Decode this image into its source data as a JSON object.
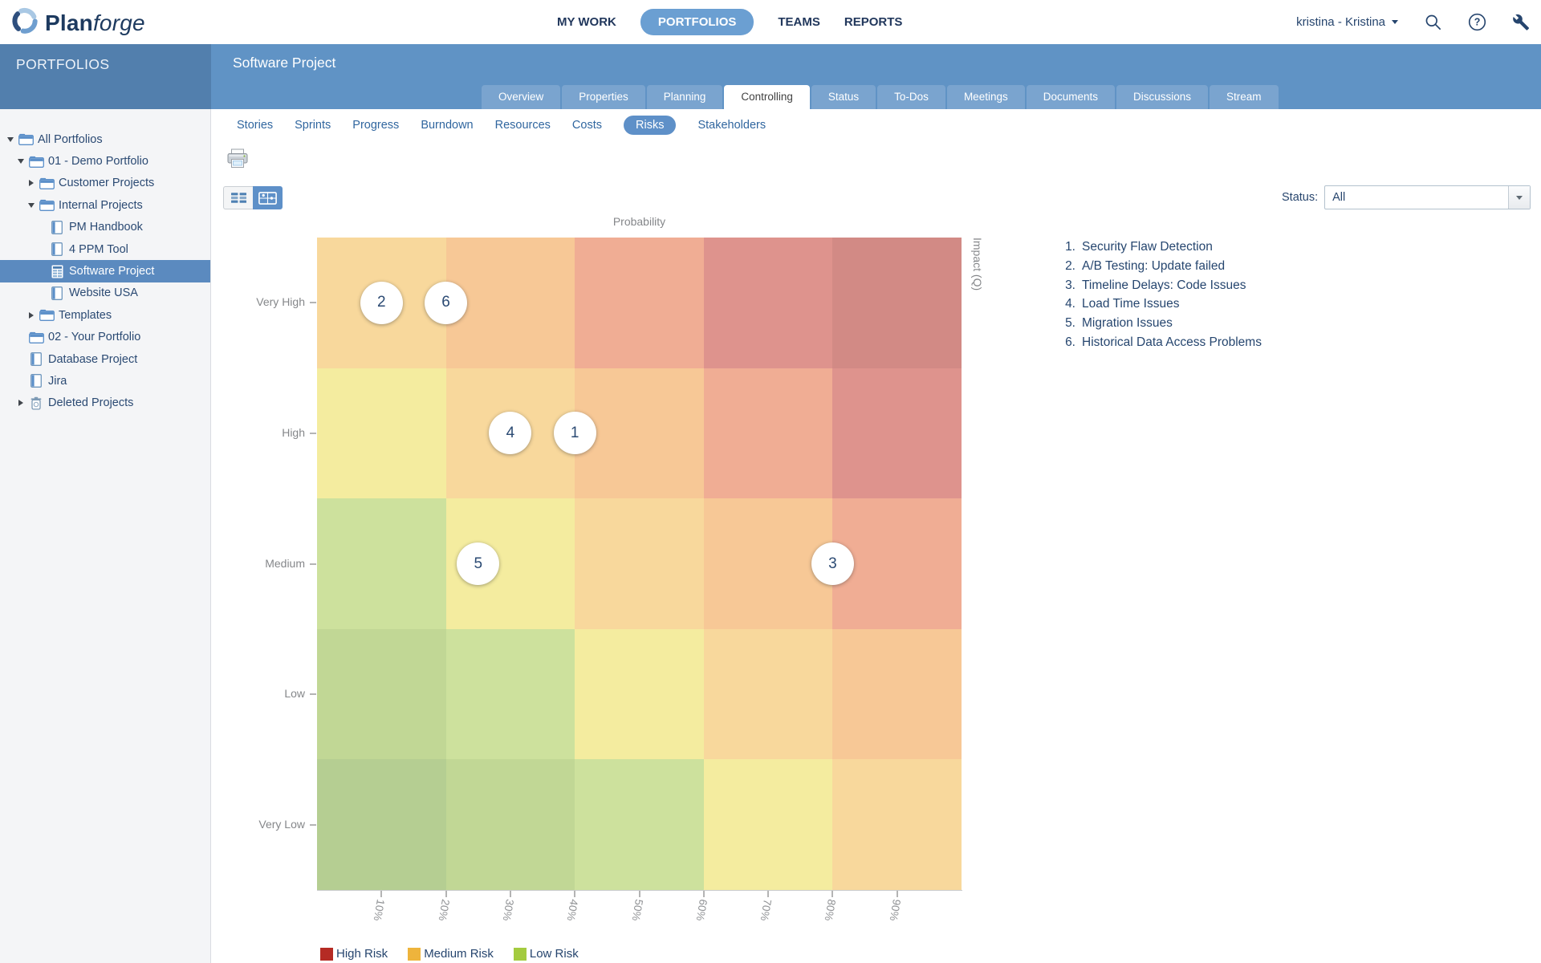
{
  "topbar": {
    "logo": {
      "brand_bold": "Plan",
      "brand_light": "forge"
    },
    "nav_items": [
      {
        "label": "MY WORK",
        "active": false
      },
      {
        "label": "PORTFOLIOS",
        "active": true
      },
      {
        "label": "TEAMS",
        "active": false
      },
      {
        "label": "REPORTS",
        "active": false
      }
    ],
    "user_label": "kristina - Kristina",
    "icon_names": [
      "search-icon",
      "help-icon",
      "admin-wrench-icon"
    ]
  },
  "header": {
    "sidebar_title": "PORTFOLIOS",
    "page_title": "Software Project",
    "tabs": [
      {
        "label": "Overview",
        "active": false
      },
      {
        "label": "Properties",
        "active": false
      },
      {
        "label": "Planning",
        "active": false
      },
      {
        "label": "Controlling",
        "active": true
      },
      {
        "label": "Status",
        "active": false
      },
      {
        "label": "To-Dos",
        "active": false
      },
      {
        "label": "Meetings",
        "active": false
      },
      {
        "label": "Documents",
        "active": false
      },
      {
        "label": "Discussions",
        "active": false
      },
      {
        "label": "Stream",
        "active": false
      }
    ]
  },
  "sidebar": {
    "tree": [
      {
        "label": "All Portfolios",
        "level": 0,
        "icon": "folder",
        "expander": "expanded",
        "selected": false
      },
      {
        "label": "01 - Demo Portfolio",
        "level": 1,
        "icon": "folder",
        "expander": "expanded",
        "selected": false
      },
      {
        "label": "Customer Projects",
        "level": 2,
        "icon": "folder",
        "expander": "collapsed",
        "selected": false
      },
      {
        "label": "Internal Projects",
        "level": 2,
        "icon": "folder",
        "expander": "expanded",
        "selected": false
      },
      {
        "label": "PM Handbook",
        "level": 3,
        "icon": "project",
        "expander": "none",
        "selected": false
      },
      {
        "label": "4 PPM Tool",
        "level": 3,
        "icon": "project",
        "expander": "none",
        "selected": false
      },
      {
        "label": "Software Project",
        "level": 3,
        "icon": "project-grid",
        "expander": "none",
        "selected": true
      },
      {
        "label": "Website USA",
        "level": 3,
        "icon": "project",
        "expander": "none",
        "selected": false
      },
      {
        "label": "Templates",
        "level": 2,
        "icon": "folder",
        "expander": "collapsed",
        "selected": false
      },
      {
        "label": "02 - Your Portfolio",
        "level": 1,
        "icon": "folder",
        "expander": "none",
        "selected": false
      },
      {
        "label": "Database Project",
        "level": 1,
        "icon": "project",
        "expander": "none",
        "selected": false
      },
      {
        "label": "Jira",
        "level": 1,
        "icon": "project",
        "expander": "none",
        "selected": false
      },
      {
        "label": "Deleted Projects",
        "level": 1,
        "icon": "trash",
        "expander": "collapsed",
        "selected": false
      }
    ]
  },
  "content": {
    "subtabs": [
      {
        "label": "Stories",
        "active": false
      },
      {
        "label": "Sprints",
        "active": false
      },
      {
        "label": "Progress",
        "active": false
      },
      {
        "label": "Burndown",
        "active": false
      },
      {
        "label": "Resources",
        "active": false
      },
      {
        "label": "Costs",
        "active": false
      },
      {
        "label": "Risks",
        "active": true
      },
      {
        "label": "Stakeholders",
        "active": false
      }
    ],
    "status_filter": {
      "label": "Status:",
      "value": "All"
    }
  },
  "chart_data": {
    "type": "heatmap",
    "top_axis_label": "Probability",
    "right_axis_label": "Impact (Q)",
    "x_tick_labels": [
      "10%",
      "20%",
      "30%",
      "40%",
      "50%",
      "60%",
      "70%",
      "80%",
      "90%"
    ],
    "x_range_pct": [
      0,
      100
    ],
    "grid_cols_pct_each": 20,
    "y_categories_top_to_bottom": [
      "Very High",
      "High",
      "Medium",
      "Low",
      "Very Low"
    ],
    "cell_colors_rows_top_to_bottom": [
      [
        "#f8d89c",
        "#f7c896",
        "#f0ad94",
        "#de938d",
        "#d28a85"
      ],
      [
        "#f4ec9f",
        "#f8d89c",
        "#f7c896",
        "#f0ad94",
        "#de938d"
      ],
      [
        "#cde19d",
        "#f4ec9f",
        "#f8d89c",
        "#f7c896",
        "#f0ad94"
      ],
      [
        "#c1d795",
        "#cde19d",
        "#f4ec9f",
        "#f8d89c",
        "#f7c896"
      ],
      [
        "#b5ce92",
        "#c1d795",
        "#cde19d",
        "#f4ec9f",
        "#f8d89c"
      ]
    ],
    "points": [
      {
        "id": "1",
        "label": "Security Flaw Detection",
        "probability_pct": 40,
        "impact": "High"
      },
      {
        "id": "2",
        "label": "A/B Testing: Update failed",
        "probability_pct": 10,
        "impact": "Very High"
      },
      {
        "id": "3",
        "label": "Timeline Delays: Code Issues",
        "probability_pct": 80,
        "impact": "Medium"
      },
      {
        "id": "4",
        "label": "Load Time Issues",
        "probability_pct": 30,
        "impact": "High"
      },
      {
        "id": "5",
        "label": "Migration Issues",
        "probability_pct": 25,
        "impact": "Medium"
      },
      {
        "id": "6",
        "label": "Historical Data Access Problems",
        "probability_pct": 20,
        "impact": "Very High"
      }
    ],
    "legend": [
      {
        "label": "High Risk",
        "color": "#b52b24"
      },
      {
        "label": "Medium Risk",
        "color": "#eeb43c"
      },
      {
        "label": "Low Risk",
        "color": "#a4cb3f"
      }
    ],
    "legend_position": "bottom-left",
    "risk_list_position": "top-right"
  },
  "colors": {
    "band_blue": "#6093c5",
    "sidebar_band_blue": "#527fad",
    "accent_blue": "#5e90c8",
    "selected_row_blue": "#5b8abf",
    "navy_text": "#27456d"
  }
}
